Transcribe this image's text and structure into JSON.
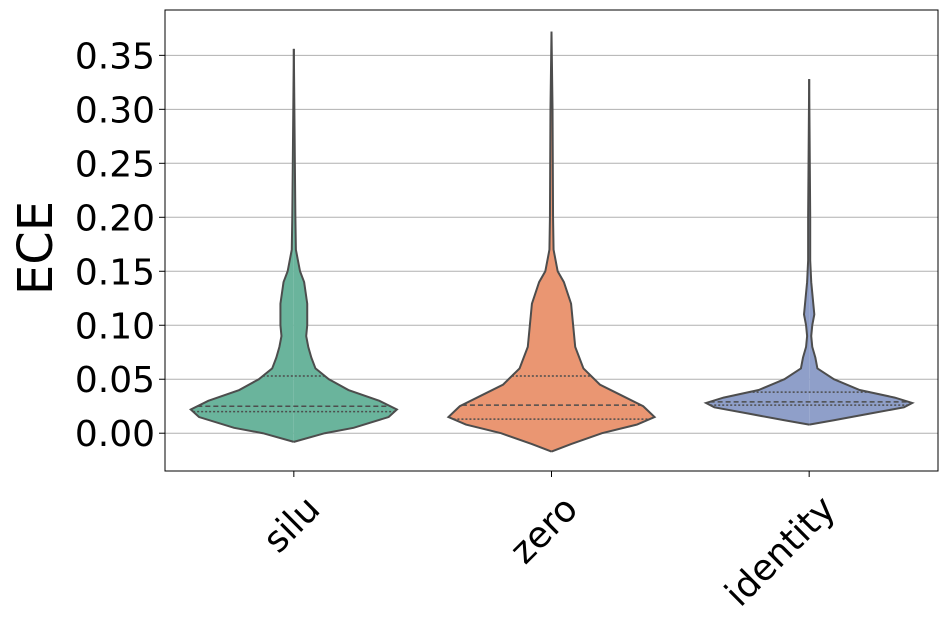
{
  "chart_data": {
    "type": "violin",
    "ylabel": "ECE",
    "categories": [
      "silu",
      "zero",
      "identity"
    ],
    "series": [
      {
        "name": "silu",
        "color": "#6ab49c",
        "density": {
          "y": [
            -0.008,
            0.0,
            0.005,
            0.015,
            0.022,
            0.03,
            0.04,
            0.05,
            0.06,
            0.07,
            0.08,
            0.09,
            0.1,
            0.12,
            0.14,
            0.15,
            0.17,
            0.2,
            0.25,
            0.356
          ],
          "width": [
            0,
            0.3,
            0.58,
            0.92,
            1,
            0.83,
            0.53,
            0.34,
            0.21,
            0.17,
            0.14,
            0.12,
            0.13,
            0.13,
            0.1,
            0.06,
            0.02,
            0.015,
            0.01,
            0
          ]
        },
        "quartiles": {
          "q1": 0.02,
          "median": 0.025,
          "q3": 0.053
        }
      },
      {
        "name": "zero",
        "color": "#ea9672",
        "density": {
          "y": [
            -0.017,
            -0.01,
            0.0,
            0.008,
            0.015,
            0.025,
            0.035,
            0.045,
            0.06,
            0.08,
            0.1,
            0.12,
            0.14,
            0.15,
            0.17,
            0.2,
            0.3,
            0.372
          ],
          "width": [
            0,
            0.19,
            0.49,
            0.83,
            1,
            0.89,
            0.68,
            0.47,
            0.31,
            0.23,
            0.21,
            0.19,
            0.12,
            0.06,
            0.02,
            0.015,
            0.01,
            0
          ]
        },
        "quartiles": {
          "q1": 0.013,
          "median": 0.026,
          "q3": 0.053
        }
      },
      {
        "name": "identity",
        "color": "#8f9fc9",
        "density": {
          "y": [
            0.008,
            0.012,
            0.018,
            0.024,
            0.028,
            0.033,
            0.04,
            0.05,
            0.06,
            0.07,
            0.08,
            0.09,
            0.1,
            0.11,
            0.12,
            0.14,
            0.16,
            0.2,
            0.328
          ],
          "width": [
            0,
            0.24,
            0.58,
            0.92,
            1,
            0.83,
            0.49,
            0.24,
            0.08,
            0.06,
            0.03,
            0.02,
            0.03,
            0.05,
            0.04,
            0.02,
            0.01,
            0.01,
            0
          ]
        },
        "quartiles": {
          "q1": 0.026,
          "median": 0.029,
          "q3": 0.038
        }
      }
    ],
    "ylim": [
      -0.035,
      0.392
    ],
    "yticks": [
      {
        "value": 0,
        "label": "0.00"
      },
      0.05,
      {
        "value": 0.1,
        "label": "0.10"
      },
      0.15,
      {
        "value": 0.2,
        "label": "0.20"
      },
      0.25,
      {
        "value": 0.3,
        "label": "0.30"
      },
      0.35
    ],
    "grid": true,
    "outline_color": "#4d4d4d"
  }
}
